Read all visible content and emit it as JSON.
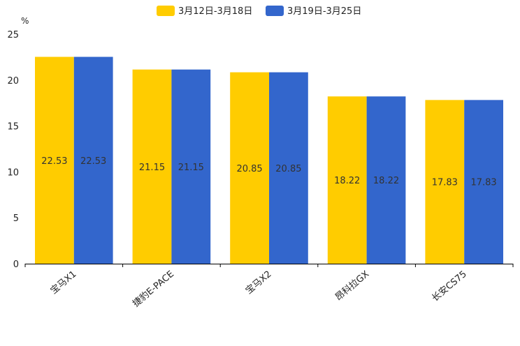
{
  "chart_data": {
    "type": "bar",
    "unit_label": "%",
    "categories": [
      "宝马X1",
      "捷豹E-PACE",
      "宝马X2",
      "昂科拉GX",
      "长安CS75"
    ],
    "series": [
      {
        "name": "3月12日-3月18日",
        "color": "#FFCC00",
        "values": [
          22.53,
          21.15,
          20.85,
          18.22,
          17.83
        ]
      },
      {
        "name": "3月19日-3月25日",
        "color": "#3366CC",
        "values": [
          22.53,
          21.15,
          20.85,
          18.22,
          17.83
        ]
      }
    ],
    "ylim": [
      0,
      25
    ],
    "yticks": [
      0,
      5,
      10,
      15,
      20,
      25
    ],
    "legend_position": "top-center",
    "grid": false
  }
}
